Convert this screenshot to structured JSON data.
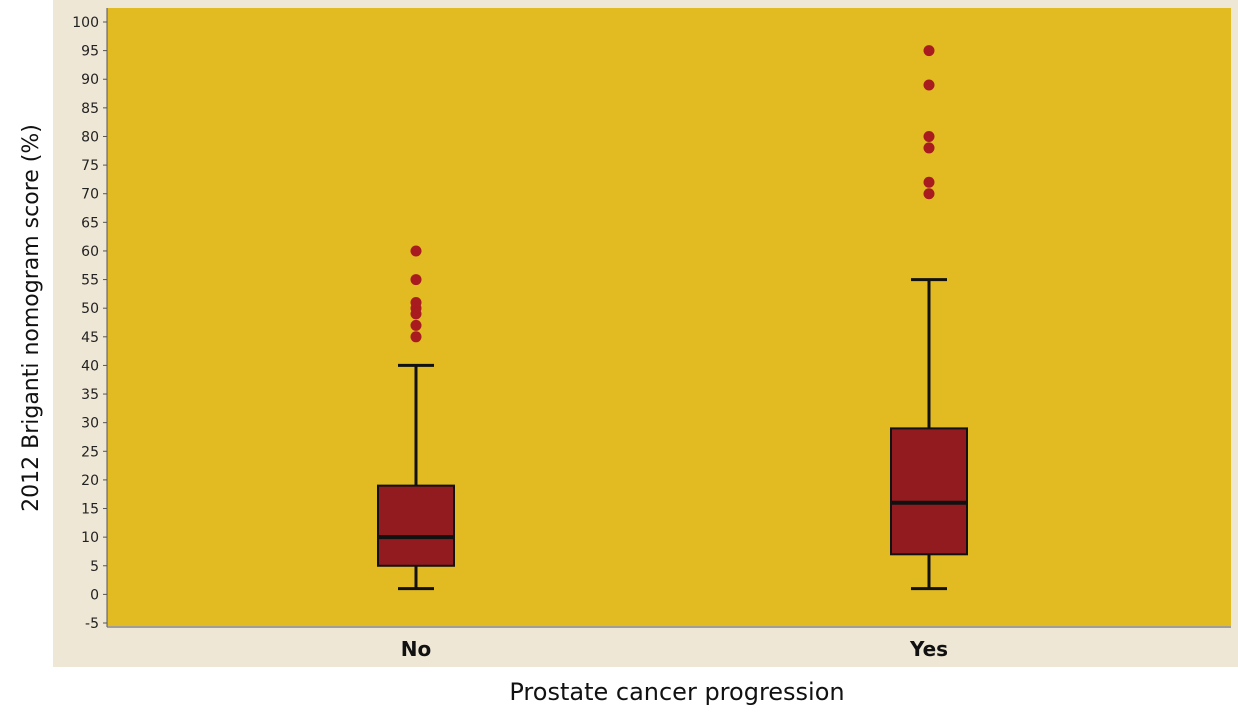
{
  "chart_data": {
    "type": "box",
    "xlabel": "Prostate cancer progression",
    "ylabel": "2012 Briganti nomogram score (%)",
    "ylim": [
      -5,
      100
    ],
    "ytick_step": 5,
    "grid": false,
    "categories": [
      "No",
      "Yes"
    ],
    "boxes": [
      {
        "category": "No",
        "whisker_low": 1,
        "q1": 5,
        "median": 10,
        "q3": 19,
        "whisker_high": 40,
        "outliers": [
          45,
          47,
          49,
          50,
          51,
          55,
          60
        ]
      },
      {
        "category": "Yes",
        "whisker_low": 1,
        "q1": 7,
        "median": 16,
        "q3": 29,
        "whisker_high": 55,
        "outliers": [
          70,
          72,
          78,
          80,
          89,
          95
        ]
      }
    ],
    "colors": {
      "plot_background": "#E2BB22",
      "frame_background": "#EEE7D6",
      "box_fill": "#921B1F",
      "outlier": "#A81B1F",
      "line": "#111111"
    }
  }
}
